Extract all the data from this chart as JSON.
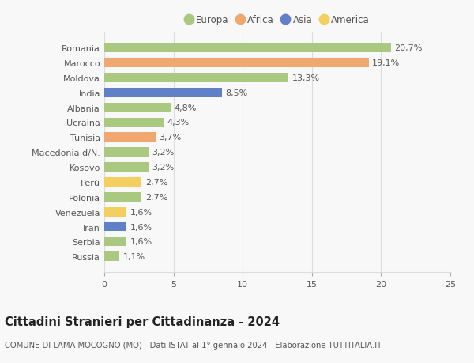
{
  "countries": [
    "Romania",
    "Marocco",
    "Moldova",
    "India",
    "Albania",
    "Ucraina",
    "Tunisia",
    "Macedonia d/N.",
    "Kosovo",
    "Perù",
    "Polonia",
    "Venezuela",
    "Iran",
    "Serbia",
    "Russia"
  ],
  "values": [
    20.7,
    19.1,
    13.3,
    8.5,
    4.8,
    4.3,
    3.7,
    3.2,
    3.2,
    2.7,
    2.7,
    1.6,
    1.6,
    1.6,
    1.1
  ],
  "labels": [
    "20,7%",
    "19,1%",
    "13,3%",
    "8,5%",
    "4,8%",
    "4,3%",
    "3,7%",
    "3,2%",
    "3,2%",
    "2,7%",
    "2,7%",
    "1,6%",
    "1,6%",
    "1,6%",
    "1,1%"
  ],
  "continents": [
    "Europa",
    "Africa",
    "Europa",
    "Asia",
    "Europa",
    "Europa",
    "Africa",
    "Europa",
    "Europa",
    "America",
    "Europa",
    "America",
    "Asia",
    "Europa",
    "Europa"
  ],
  "colors": {
    "Europa": "#a8c97f",
    "Africa": "#f0a870",
    "Asia": "#6080c8",
    "America": "#f5ce60"
  },
  "legend_order": [
    "Europa",
    "Africa",
    "Asia",
    "America"
  ],
  "title": "Cittadini Stranieri per Cittadinanza - 2024",
  "subtitle": "COMUNE DI LAMA MOCOGNO (MO) - Dati ISTAT al 1° gennaio 2024 - Elaborazione TUTTITALIA.IT",
  "xlim": [
    0,
    25
  ],
  "xticks": [
    0,
    5,
    10,
    15,
    20,
    25
  ],
  "background_color": "#f8f8f8",
  "grid_color": "#dddddd",
  "bar_height": 0.62,
  "label_fontsize": 8,
  "title_fontsize": 10.5,
  "subtitle_fontsize": 7.2,
  "ytick_fontsize": 8,
  "xtick_fontsize": 8,
  "legend_fontsize": 8.5
}
